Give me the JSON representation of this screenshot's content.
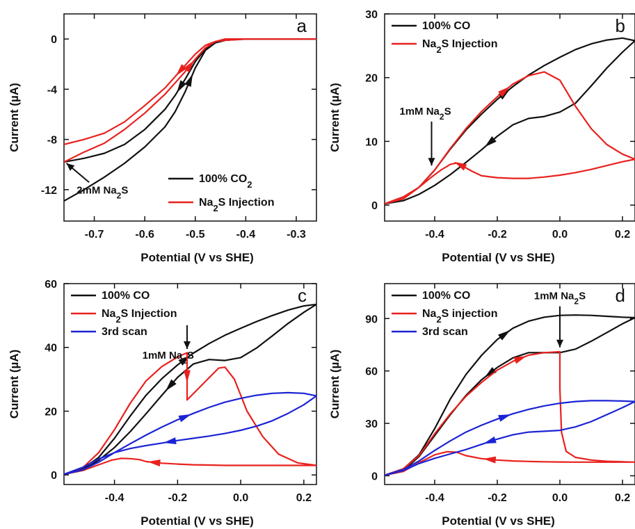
{
  "colors": {
    "black": "#111111",
    "red": "#e8211e",
    "blue": "#1b24d4"
  },
  "chart_data": [
    {
      "id": "a",
      "type": "line",
      "panel_letter": "a",
      "xlabel": "Potential (V vs SHE)",
      "ylabel": "Current (µA)",
      "xlim": [
        -0.76,
        -0.26
      ],
      "ylim": [
        -14.5,
        2
      ],
      "xticks": [
        -0.7,
        -0.6,
        -0.5,
        -0.4,
        -0.3
      ],
      "xtick_labels": [
        "-0.7",
        "-0.6",
        "-0.5",
        "-0.4",
        "-0.3"
      ],
      "yticks": [
        0,
        -4,
        -8,
        -12
      ],
      "ytick_labels": [
        "0",
        "-4",
        "-8",
        "-12"
      ],
      "legend_position": "bottom-right",
      "series": [
        {
          "name": "100% CO₂",
          "color": "black",
          "x": [
            -0.76,
            -0.72,
            -0.68,
            -0.64,
            -0.6,
            -0.56,
            -0.54,
            -0.52,
            -0.5,
            -0.48,
            -0.46,
            -0.45,
            -0.44,
            -0.4,
            -0.35,
            -0.3,
            -0.26,
            -0.3,
            -0.35,
            -0.4,
            -0.44,
            -0.46,
            -0.48,
            -0.5,
            -0.52,
            -0.54,
            -0.56,
            -0.6,
            -0.64,
            -0.68,
            -0.72,
            -0.76
          ],
          "y": [
            -12.9,
            -12.0,
            -11.0,
            -9.9,
            -8.6,
            -7.0,
            -5.8,
            -4.2,
            -2.3,
            -0.9,
            -0.3,
            -0.1,
            0,
            0,
            0,
            0,
            0,
            0,
            0,
            0,
            -0.1,
            -0.3,
            -0.8,
            -1.8,
            -3.2,
            -4.5,
            -5.6,
            -7.2,
            -8.4,
            -9.1,
            -9.5,
            -9.8
          ]
        },
        {
          "name": "Na₂S Injection",
          "color": "red",
          "x": [
            -0.76,
            -0.72,
            -0.68,
            -0.64,
            -0.6,
            -0.56,
            -0.54,
            -0.52,
            -0.5,
            -0.48,
            -0.46,
            -0.45,
            -0.44,
            -0.4,
            -0.35,
            -0.3,
            -0.26,
            -0.3,
            -0.35,
            -0.4,
            -0.44,
            -0.46,
            -0.48,
            -0.5,
            -0.52,
            -0.54,
            -0.56,
            -0.6,
            -0.64,
            -0.68,
            -0.72,
            -0.76
          ],
          "y": [
            -9.8,
            -9.0,
            -8.3,
            -7.2,
            -5.9,
            -4.4,
            -3.5,
            -2.6,
            -1.6,
            -0.7,
            -0.2,
            -0.1,
            0,
            0,
            0,
            0,
            0,
            0,
            0,
            0,
            -0.1,
            -0.2,
            -0.5,
            -1.2,
            -2.1,
            -3.0,
            -3.9,
            -5.3,
            -6.6,
            -7.5,
            -8.0,
            -8.4
          ]
        }
      ],
      "annotations": [
        {
          "text": "2mM Na₂S",
          "x": -0.735,
          "y": -12.3
        }
      ]
    },
    {
      "id": "b",
      "type": "line",
      "panel_letter": "b",
      "xlabel": "Potential (V vs SHE)",
      "ylabel": "Current (µA)",
      "xlim": [
        -0.56,
        0.24
      ],
      "ylim": [
        -2.5,
        30
      ],
      "xticks": [
        -0.4,
        -0.2,
        0.0,
        0.2
      ],
      "xtick_labels": [
        "-0.4",
        "-0.2",
        "0.0",
        "0.2"
      ],
      "yticks": [
        0,
        10,
        20,
        30
      ],
      "ytick_labels": [
        "0",
        "10",
        "20",
        "30"
      ],
      "legend_position": "top-left",
      "series": [
        {
          "name": "100% CO",
          "color": "black",
          "x": [
            -0.56,
            -0.5,
            -0.45,
            -0.4,
            -0.35,
            -0.3,
            -0.25,
            -0.2,
            -0.15,
            -0.1,
            -0.05,
            0.0,
            0.05,
            0.1,
            0.15,
            0.2,
            0.24,
            0.2,
            0.15,
            0.1,
            0.05,
            0.0,
            -0.05,
            -0.1,
            -0.15,
            -0.2,
            -0.25,
            -0.3,
            -0.35,
            -0.4,
            -0.45,
            -0.5,
            -0.56
          ],
          "y": [
            0.2,
            1.0,
            2.8,
            5.5,
            8.8,
            11.8,
            14.3,
            16.6,
            18.6,
            20.4,
            21.9,
            23.2,
            24.4,
            25.3,
            25.9,
            26.2,
            25.8,
            24.0,
            21.5,
            18.7,
            16.0,
            14.6,
            13.9,
            13.6,
            12.6,
            10.8,
            8.7,
            6.7,
            4.8,
            3.1,
            1.7,
            0.7,
            0.2
          ]
        },
        {
          "name": "Na₂S Injection",
          "color": "red",
          "x": [
            -0.56,
            -0.5,
            -0.45,
            -0.4,
            -0.35,
            -0.3,
            -0.25,
            -0.2,
            -0.15,
            -0.1,
            -0.05,
            0.0,
            0.05,
            0.1,
            0.15,
            0.2,
            0.24,
            0.2,
            0.15,
            0.1,
            0.05,
            0.0,
            -0.05,
            -0.1,
            -0.15,
            -0.2,
            -0.25,
            -0.28,
            -0.31,
            -0.33,
            -0.35,
            -0.38,
            -0.41,
            -0.45,
            -0.5,
            -0.56
          ],
          "y": [
            0.2,
            1.0,
            2.8,
            5.5,
            8.9,
            12.0,
            14.7,
            17.0,
            19.0,
            20.3,
            20.9,
            19.6,
            15.5,
            12.0,
            9.5,
            8.0,
            7.2,
            6.8,
            6.2,
            5.6,
            5.1,
            4.7,
            4.4,
            4.2,
            4.2,
            4.3,
            4.6,
            5.3,
            6.1,
            6.6,
            6.4,
            5.5,
            4.4,
            2.8,
            1.3,
            0.2
          ]
        }
      ],
      "annotations": [
        {
          "text": "1mM Na₂S",
          "x": -0.43,
          "y": 14.2
        }
      ]
    },
    {
      "id": "c",
      "type": "line",
      "panel_letter": "c",
      "xlabel": "Potential (V vs SHE)",
      "ylabel": "Current (µA)",
      "xlim": [
        -0.56,
        0.24
      ],
      "ylim": [
        -3,
        60
      ],
      "xticks": [
        -0.4,
        -0.2,
        0.0,
        0.2
      ],
      "xtick_labels": [
        "-0.4",
        "-0.2",
        "0.0",
        "0.2"
      ],
      "yticks": [
        0,
        20,
        40,
        60
      ],
      "ytick_labels": [
        "0",
        "20",
        "40",
        "60"
      ],
      "legend_position": "top-left",
      "series": [
        {
          "name": "100% CO",
          "color": "black",
          "x": [
            -0.56,
            -0.5,
            -0.45,
            -0.4,
            -0.35,
            -0.3,
            -0.25,
            -0.2,
            -0.15,
            -0.1,
            -0.05,
            0.0,
            0.05,
            0.1,
            0.15,
            0.2,
            0.24,
            0.2,
            0.15,
            0.1,
            0.05,
            0.0,
            -0.05,
            -0.1,
            -0.15,
            -0.2,
            -0.25,
            -0.3,
            -0.35,
            -0.4,
            -0.45,
            -0.5,
            -0.56
          ],
          "y": [
            0.2,
            2.0,
            5.5,
            11.5,
            18.5,
            25.0,
            30.2,
            34.5,
            38.2,
            41.2,
            43.8,
            46.0,
            48.1,
            50.0,
            51.7,
            53.0,
            53.5,
            51.0,
            47.5,
            43.6,
            39.8,
            36.8,
            35.9,
            36.2,
            34.8,
            30.6,
            25.0,
            19.2,
            13.6,
            8.6,
            4.6,
            1.6,
            0.2
          ]
        },
        {
          "name": "Na₂S Injection",
          "color": "red",
          "x": [
            -0.56,
            -0.5,
            -0.45,
            -0.4,
            -0.35,
            -0.3,
            -0.25,
            -0.2,
            -0.17,
            -0.17,
            -0.12,
            -0.07,
            -0.05,
            -0.02,
            0.02,
            0.07,
            0.12,
            0.18,
            0.24,
            0.2,
            0.15,
            0.1,
            0.05,
            0.0,
            -0.05,
            -0.1,
            -0.15,
            -0.2,
            -0.25,
            -0.3,
            -0.32,
            -0.35,
            -0.38,
            -0.41,
            -0.45,
            -0.5,
            -0.56
          ],
          "y": [
            0.2,
            2.3,
            7.0,
            14.2,
            22.5,
            29.5,
            34.0,
            37.0,
            38.3,
            23.5,
            28.5,
            33.5,
            33.8,
            30.0,
            20.0,
            12.0,
            6.5,
            3.8,
            3.0,
            3.0,
            3.0,
            3.0,
            3.0,
            3.0,
            3.0,
            3.1,
            3.2,
            3.4,
            3.7,
            4.2,
            4.8,
            5.1,
            5.2,
            4.6,
            3.2,
            1.4,
            0.2
          ]
        },
        {
          "name": "3rd scan",
          "color": "blue",
          "x": [
            -0.56,
            -0.5,
            -0.45,
            -0.4,
            -0.35,
            -0.3,
            -0.25,
            -0.2,
            -0.15,
            -0.1,
            -0.05,
            0.0,
            0.05,
            0.1,
            0.15,
            0.2,
            0.24,
            0.2,
            0.15,
            0.1,
            0.05,
            0.0,
            -0.05,
            -0.1,
            -0.15,
            -0.2,
            -0.25,
            -0.3,
            -0.35,
            -0.4,
            -0.45,
            -0.5,
            -0.56
          ],
          "y": [
            0.2,
            1.6,
            4.0,
            7.0,
            9.8,
            12.5,
            15.0,
            17.3,
            19.3,
            21.2,
            22.8,
            24.0,
            25.0,
            25.6,
            25.8,
            25.6,
            24.8,
            22.0,
            19.3,
            17.0,
            15.3,
            14.0,
            13.0,
            12.2,
            11.5,
            10.8,
            10.0,
            9.2,
            8.3,
            7.0,
            5.0,
            2.4,
            0.2
          ]
        }
      ],
      "annotations": [
        {
          "text": "1mM Na₂S",
          "x": -0.23,
          "y": 36.5
        }
      ]
    },
    {
      "id": "d",
      "type": "line",
      "panel_letter": "d",
      "xlabel": "Potential (V vs SHE)",
      "ylabel": "Current (µA)",
      "xlim": [
        -0.56,
        0.24
      ],
      "ylim": [
        -5,
        110
      ],
      "xticks": [
        -0.4,
        -0.2,
        0.0,
        0.2
      ],
      "xtick_labels": [
        "-0.4",
        "-0.2",
        "0.0",
        "0.2"
      ],
      "yticks": [
        0,
        30,
        60,
        90
      ],
      "ytick_labels": [
        "0",
        "30",
        "60",
        "90"
      ],
      "legend_position": "top-left",
      "series": [
        {
          "name": "100% CO",
          "color": "black",
          "x": [
            -0.56,
            -0.5,
            -0.45,
            -0.4,
            -0.35,
            -0.3,
            -0.25,
            -0.2,
            -0.15,
            -0.1,
            -0.05,
            0.0,
            0.05,
            0.1,
            0.15,
            0.2,
            0.24,
            0.2,
            0.15,
            0.1,
            0.05,
            0.0,
            -0.05,
            -0.1,
            -0.15,
            -0.2,
            -0.25,
            -0.3,
            -0.35,
            -0.4,
            -0.45,
            -0.5,
            -0.56
          ],
          "y": [
            0.3,
            4.0,
            12.0,
            27.0,
            44.0,
            58.0,
            69.0,
            78.0,
            84.5,
            88.5,
            90.8,
            91.8,
            92.0,
            91.8,
            91.3,
            90.8,
            90.5,
            87.0,
            82.0,
            77.0,
            72.5,
            70.5,
            70.5,
            70.5,
            67.5,
            62.0,
            55.0,
            46.0,
            35.0,
            23.0,
            11.0,
            3.0,
            0.3
          ]
        },
        {
          "name": "Na₂S injection",
          "color": "red",
          "x": [
            -0.56,
            -0.5,
            -0.45,
            -0.4,
            -0.35,
            -0.3,
            -0.25,
            -0.2,
            -0.15,
            -0.1,
            -0.05,
            0.0,
            0.0,
            0.005,
            0.02,
            0.05,
            0.1,
            0.15,
            0.2,
            0.24,
            0.2,
            0.15,
            0.1,
            0.05,
            0.0,
            -0.05,
            -0.1,
            -0.15,
            -0.2,
            -0.25,
            -0.3,
            -0.33,
            -0.36,
            -0.4,
            -0.45,
            -0.5,
            -0.56
          ],
          "y": [
            0.3,
            4.0,
            11.5,
            24.0,
            35.5,
            45.5,
            53.5,
            60.5,
            65.5,
            69.0,
            70.5,
            71.0,
            50.0,
            25.0,
            14.0,
            10.5,
            9.0,
            8.3,
            8.0,
            7.8,
            7.8,
            7.8,
            7.8,
            7.8,
            7.9,
            8.0,
            8.2,
            8.5,
            9.0,
            9.8,
            11.5,
            13.5,
            13.8,
            12.0,
            7.5,
            2.5,
            0.3
          ]
        },
        {
          "name": "3rd scan",
          "color": "blue",
          "x": [
            -0.56,
            -0.5,
            -0.45,
            -0.4,
            -0.35,
            -0.3,
            -0.25,
            -0.2,
            -0.15,
            -0.1,
            -0.05,
            0.0,
            0.05,
            0.1,
            0.15,
            0.2,
            0.24,
            0.2,
            0.15,
            0.1,
            0.05,
            0.0,
            -0.05,
            -0.1,
            -0.15,
            -0.2,
            -0.25,
            -0.3,
            -0.35,
            -0.4,
            -0.45,
            -0.5,
            -0.56
          ],
          "y": [
            0.3,
            3.5,
            8.5,
            14.5,
            20.0,
            25.0,
            29.0,
            32.5,
            35.5,
            38.0,
            40.0,
            41.5,
            42.5,
            43.0,
            43.0,
            42.8,
            42.5,
            39.0,
            35.0,
            31.0,
            28.0,
            26.0,
            25.5,
            25.0,
            23.5,
            21.0,
            18.0,
            15.0,
            12.5,
            10.0,
            7.0,
            3.0,
            0.3
          ]
        }
      ],
      "annotations": [
        {
          "text": "1mM Na₂S",
          "x": 0.0,
          "y": 101
        }
      ]
    }
  ]
}
